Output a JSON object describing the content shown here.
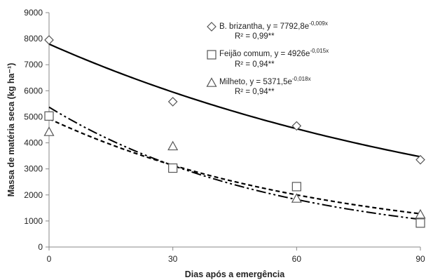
{
  "chart_data": {
    "type": "scatter",
    "xlabel": "Dias após a emergência",
    "ylabel": "Massa de matéria seca (kg ha⁻¹)",
    "xlim": [
      0,
      90
    ],
    "ylim": [
      0,
      9000
    ],
    "x_ticks": [
      "0",
      "30",
      "60",
      "90"
    ],
    "y_ticks": [
      "0",
      "1000",
      "2000",
      "3000",
      "4000",
      "5000",
      "6000",
      "7000",
      "8000",
      "9000"
    ],
    "grid": false,
    "legend_position": "top-right",
    "series": [
      {
        "name": "B. brizantha",
        "marker": "diamond",
        "line_style": "solid",
        "color": "#000000",
        "x": [
          0,
          30,
          60,
          90
        ],
        "y": [
          7950,
          5580,
          4650,
          3350
        ],
        "equation_prefix": "B. brizantha, y = 7792,8e",
        "equation_exp": "-0,009x",
        "r2": "R² = 0,99**",
        "fit": {
          "a": 7792.8,
          "b": -0.009
        }
      },
      {
        "name": "Feijão comum",
        "marker": "square",
        "line_style": "dashed",
        "color": "#000000",
        "x": [
          0,
          30,
          60,
          90
        ],
        "y": [
          5030,
          3030,
          2320,
          920
        ],
        "equation_prefix": "Feijão comum, y = 4926e",
        "equation_exp": "-0,015x",
        "r2": "R² = 0,94**",
        "fit": {
          "a": 4926,
          "b": -0.015
        }
      },
      {
        "name": "Milheto",
        "marker": "triangle",
        "line_style": "dash-dot-dot",
        "color": "#000000",
        "x": [
          0,
          30,
          60,
          90
        ],
        "y": [
          4420,
          3870,
          1860,
          1250
        ],
        "equation_prefix": "Milheto, y = 5371,5e",
        "equation_exp": "-0,018x",
        "r2": "R² = 0,94**",
        "fit": {
          "a": 5371.5,
          "b": -0.018
        }
      }
    ]
  }
}
